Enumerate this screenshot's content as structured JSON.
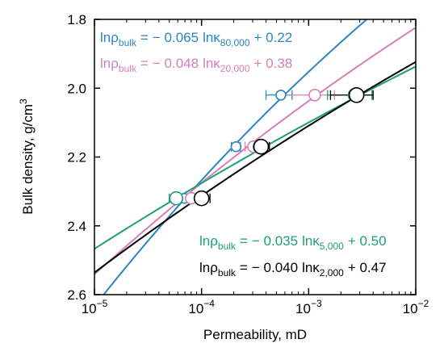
{
  "chart_data": {
    "type": "scatter",
    "xlabel": "Permeability, mD",
    "ylabel": "Bulk density, g/cm",
    "ylabel_sup": "3",
    "xscale": "log",
    "xlim": [
      1e-05,
      0.01
    ],
    "xticks": [
      {
        "value": 1e-05,
        "label": "10",
        "exp": "−5"
      },
      {
        "value": 0.0001,
        "label": "10",
        "exp": "−4"
      },
      {
        "value": 0.001,
        "label": "10",
        "exp": "−3"
      },
      {
        "value": 0.01,
        "label": "10",
        "exp": "−2"
      }
    ],
    "ylim": [
      1.8,
      2.6
    ],
    "y_inverted": true,
    "yticks": [
      1.8,
      {
        "value": 2,
        "label": "2.0"
      },
      2.2,
      2.4,
      2.6
    ],
    "series": [
      {
        "color": "#2a86c2",
        "x": [
          0.00055,
          0.00021,
          6.9e-05
        ],
        "values": [
          2.02,
          2.17,
          2.32
        ],
        "xerr": [
          0.00015,
          2e-05,
          8e-06
        ],
        "fit": {
          "slope": -0.065,
          "intercept": 0.22,
          "lhs": "lnρ",
          "lhs_sub": "bulk",
          "eq": "=",
          "slope_label": "− 0.065",
          "rhs": "lnκ",
          "rhs_sub": "80,000",
          "intercept_label": "+ 0.22"
        }
      },
      {
        "color": "#d57fb7",
        "x": [
          0.00114,
          0.000305,
          8e-05
        ],
        "values": [
          2.02,
          2.17,
          2.32
        ],
        "xerr": [
          0.0006,
          5e-05,
          1e-05
        ],
        "fit": {
          "slope": -0.048,
          "intercept": 0.38,
          "lhs": "lnρ",
          "lhs_sub": "bulk",
          "eq": "=",
          "slope_label": "− 0.048",
          "rhs": "lnκ",
          "rhs_sub": "20,000",
          "intercept_label": "+ 0.38"
        }
      },
      {
        "color": "#1d9e78",
        "x": [
          0.0027,
          0.00035,
          5.8e-05
        ],
        "values": [
          2.02,
          2.17,
          2.32
        ],
        "xerr": [
          0.0012,
          6e-05,
          8e-06
        ],
        "fit": {
          "slope": -0.035,
          "intercept": 0.5,
          "lhs": "lnρ",
          "lhs_sub": "bulk",
          "eq": "=",
          "slope_label": "− 0.035",
          "rhs": "lnκ",
          "rhs_sub": "5,000",
          "intercept_label": "+ 0.50"
        }
      },
      {
        "color": "#000000",
        "x": [
          0.0028,
          0.00036,
          0.0001
        ],
        "values": [
          2.02,
          2.17,
          2.32
        ],
        "xerr": [
          0.0012,
          7e-05,
          2e-05
        ],
        "fit": {
          "slope": -0.04,
          "intercept": 0.47,
          "lhs": "lnρ",
          "lhs_sub": "bulk",
          "eq": "=",
          "slope_label": "− 0.040",
          "rhs": "lnκ",
          "rhs_sub": "2,000",
          "intercept_label": "+ 0.47"
        }
      }
    ]
  }
}
